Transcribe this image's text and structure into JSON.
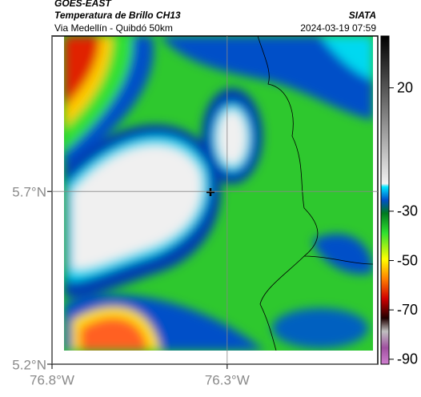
{
  "header": {
    "satellite": "GOES-EAST",
    "product": "Temperatura de Brillo CH13",
    "source": "SIATA",
    "region": "Via Medellín - Quibdó 50km",
    "timestamp": "2024-03-19 07:59"
  },
  "map": {
    "lat_range": [
      5.2,
      6.15
    ],
    "lon_range": [
      -76.8,
      -75.87
    ],
    "lat_ticks": [
      {
        "value": 5.2,
        "label": "5.2°N"
      },
      {
        "value": 5.7,
        "label": "5.7°N"
      }
    ],
    "lon_ticks": [
      {
        "value": -76.8,
        "label": "76.8°W"
      },
      {
        "value": -76.3,
        "label": "76.3°W"
      }
    ]
  },
  "colorbar": {
    "range": [
      -92,
      41
    ],
    "ticks": [
      20,
      -30,
      -50,
      -70,
      -90
    ]
  }
}
